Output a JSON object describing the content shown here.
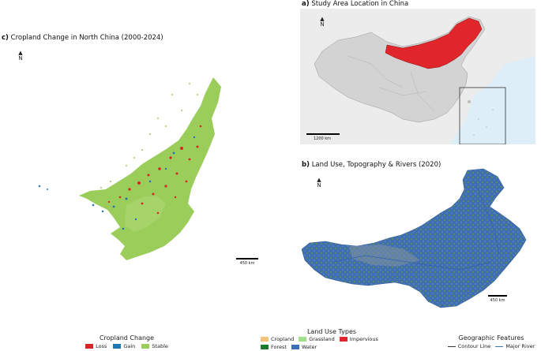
{
  "panel_a": {
    "title_letter": "a)",
    "title_text": "Study Area Location in China",
    "north_label": "N",
    "scale_label": "1200 km"
  },
  "panel_b": {
    "title_letter": "b)",
    "title_text": "Land Use, Topography & Rivers (2020)",
    "north_label": "N",
    "scale_label": "450 km"
  },
  "panel_c": {
    "title_letter": "c)",
    "title_text": "Cropland Change in North China (2000-2024)",
    "north_label": "N",
    "scale_label": "450 km"
  },
  "legend_cropland": {
    "title": "Cropland Change",
    "items": [
      {
        "label": "Loss",
        "color": "#d62728"
      },
      {
        "label": "Gain",
        "color": "#1f77b4"
      },
      {
        "label": "Stable",
        "color": "#9acd5a"
      }
    ]
  },
  "legend_landuse": {
    "title": "Land Use Types",
    "items": [
      {
        "label": "Cropland",
        "color": "#f5c27a"
      },
      {
        "label": "Grassland",
        "color": "#9fe08a"
      },
      {
        "label": "Impervious",
        "color": "#e0262b"
      },
      {
        "label": "Forest",
        "color": "#1a7a2e"
      },
      {
        "label": "Water",
        "color": "#3b6fb6"
      }
    ]
  },
  "legend_geo": {
    "title": "Geographic Features",
    "items": [
      {
        "label": "Contour Line",
        "color": "#333333"
      },
      {
        "label": "Major River",
        "color": "#3b6fb6"
      }
    ]
  },
  "colors": {
    "study_area": "#e0262b",
    "china": "#d3d3d3",
    "ocean": "#ddeef8",
    "land_bg": "#ececec",
    "landuse_base": "#3f6fae"
  }
}
